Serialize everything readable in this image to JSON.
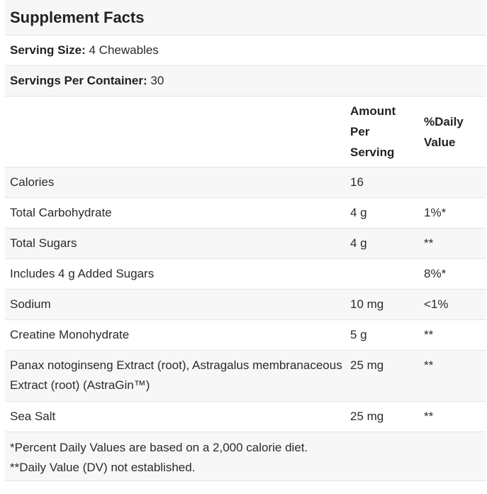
{
  "title": "Supplement Facts",
  "serving_size": {
    "label": "Serving Size:",
    "value": " 4 Chewables"
  },
  "servings_per_container": {
    "label": "Servings Per Container:",
    "value": " 30"
  },
  "columns": {
    "amount_line1": "Amount",
    "amount_line2": "Per",
    "amount_line3": "Serving",
    "dv_line1": "%Daily",
    "dv_line2": "Value"
  },
  "rows": [
    {
      "name": "Calories",
      "amount": "16",
      "dv": ""
    },
    {
      "name": "Total Carbohydrate",
      "amount": "4 g",
      "dv": "1%*"
    },
    {
      "name": "Total Sugars",
      "amount": "4 g",
      "dv": "**"
    },
    {
      "name": "Includes 4 g Added Sugars",
      "amount": "",
      "dv": "8%*"
    },
    {
      "name": "Sodium",
      "amount": "10 mg",
      "dv": "<1%"
    },
    {
      "name": "Creatine Monohydrate",
      "amount": "5 g",
      "dv": "**"
    },
    {
      "name": "Panax notoginseng Extract (root), Astragalus membranaceous Extract (root) (AstraGin™)",
      "amount": "25 mg",
      "dv": "**"
    },
    {
      "name": "Sea Salt",
      "amount": "25 mg",
      "dv": "**"
    }
  ],
  "footnotes": [
    "*Percent Daily Values are based on a 2,000 calorie diet.",
    "**Daily Value (DV) not established."
  ]
}
